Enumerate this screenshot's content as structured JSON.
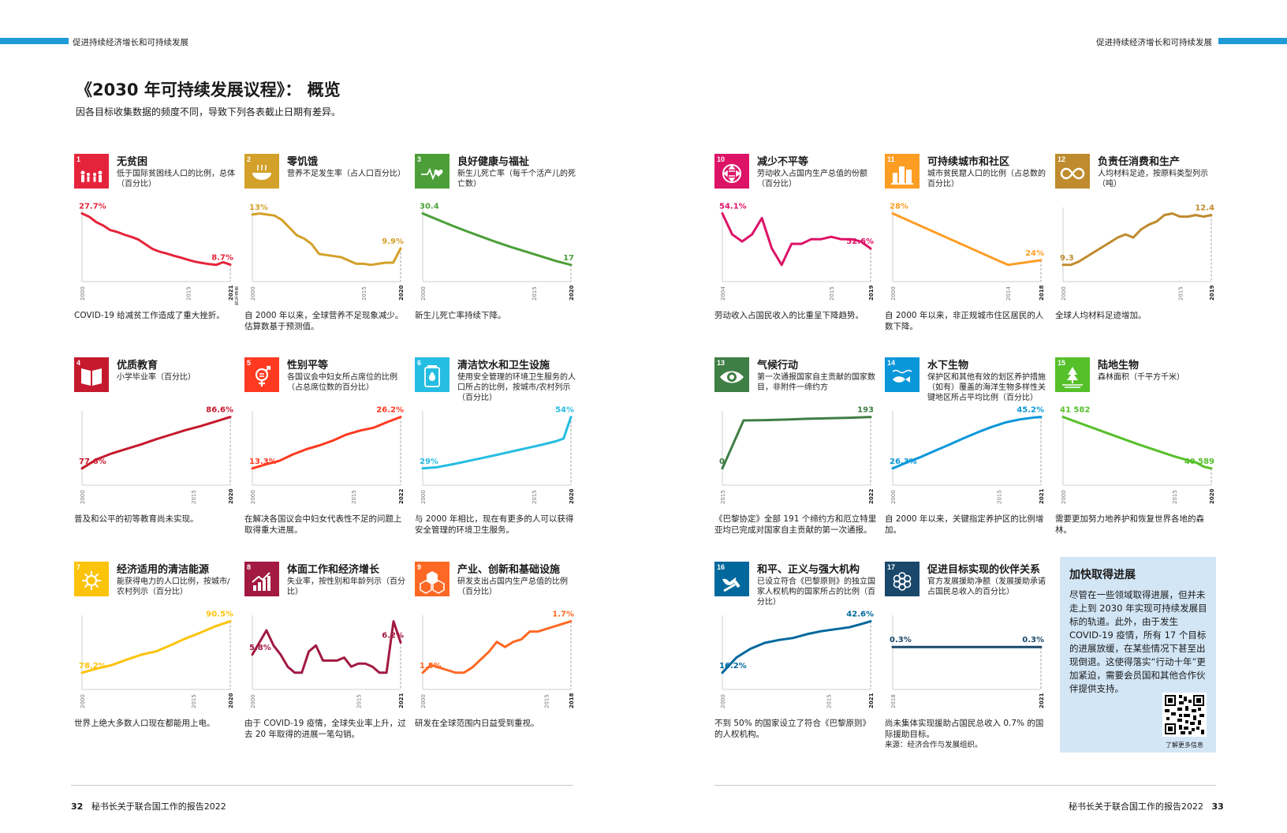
{
  "header": {
    "left": "促进持续经济增长和可持续发展",
    "right": "促进持续经济增长和可持续发展"
  },
  "title": "《2030 年可持续发展议程》： 概览",
  "subtitle": "因各目标收集数据的频度不同，导致下列各表截止日期有差异。",
  "panels": [
    {
      "num": "1",
      "icon": "people-family-icon",
      "color": "#e5243b",
      "title": "无贫困",
      "desc": "低于国际贫困线人口的比例，总体（百分比）",
      "caption": "COVID-19 给减贫工作造成了重大挫折。",
      "chart_data": {
        "type": "line",
        "x": [
          2000,
          2001,
          2002,
          2003,
          2004,
          2005,
          2006,
          2007,
          2008,
          2009,
          2010,
          2011,
          2012,
          2013,
          2014,
          2015,
          2016,
          2017,
          2018,
          2019,
          2020,
          2021
        ],
        "values": [
          27.7,
          26.5,
          24.5,
          23.2,
          21.5,
          20.8,
          19.8,
          19.0,
          18.0,
          16.2,
          14.5,
          13.5,
          12.8,
          12.0,
          11.3,
          10.5,
          9.8,
          9.3,
          8.9,
          8.6,
          9.6,
          8.7
        ],
        "start_label": "27.7%",
        "end_label": "8.7%",
        "ticks": [
          "2000",
          "2015"
        ],
        "end_tick": "2021",
        "end_tick_sub": "临近预测"
      }
    },
    {
      "num": "2",
      "icon": "food-bowl-icon",
      "color": "#d3a029",
      "title": "零饥饿",
      "desc": "营养不足发生率（占人口百分比）",
      "caption": "自 2000 年以来，全球营养不足现象减少。估算数基于预测值。",
      "chart_data": {
        "type": "line",
        "x": [
          2000,
          2001,
          2002,
          2003,
          2004,
          2005,
          2006,
          2007,
          2008,
          2009,
          2010,
          2011,
          2012,
          2013,
          2014,
          2015,
          2016,
          2017,
          2018,
          2019,
          2020
        ],
        "values": [
          13,
          13.1,
          13,
          12.9,
          12.5,
          11.8,
          11.1,
          10.8,
          10.3,
          9.4,
          9.3,
          9.2,
          9.1,
          8.8,
          8.5,
          8.5,
          8.4,
          8.5,
          8.6,
          8.6,
          9.9
        ],
        "start_label": "13%",
        "end_label": "9.9%",
        "ticks": [
          "2000",
          "2015"
        ],
        "end_tick": "2020",
        "end_tick_sub": ""
      }
    },
    {
      "num": "3",
      "icon": "heartbeat-icon",
      "color": "#4c9f38",
      "title": "良好健康与福祉",
      "desc": "新生儿死亡率（每千个活产儿的死亡数）",
      "caption": "新生儿死亡率持续下降。",
      "chart_data": {
        "type": "line",
        "x": [
          2000,
          2002,
          2004,
          2006,
          2008,
          2010,
          2012,
          2014,
          2016,
          2018,
          2020
        ],
        "values": [
          30.4,
          28.8,
          27.2,
          25.7,
          24.3,
          22.9,
          21.6,
          20.4,
          19.2,
          18.0,
          17
        ],
        "start_label": "30.4",
        "end_label": "17",
        "ticks": [
          "2000",
          "2015"
        ],
        "end_tick": "2020",
        "end_tick_sub": ""
      }
    },
    {
      "num": "4",
      "icon": "open-book-icon",
      "color": "#c5192d",
      "title": "优质教育",
      "desc": "小学毕业率（百分比）",
      "caption": "普及和公平的初等教育尚未实现。",
      "chart_data": {
        "type": "line",
        "x": [
          2000,
          2002,
          2004,
          2006,
          2008,
          2010,
          2012,
          2014,
          2016,
          2018,
          2020
        ],
        "values": [
          77.6,
          79.2,
          80.2,
          81.0,
          81.8,
          82.7,
          83.5,
          84.3,
          85.0,
          85.8,
          86.6
        ],
        "start_label": "77.6%",
        "end_label": "86.6%",
        "ticks": [
          "2000",
          "2015"
        ],
        "end_tick": "2020",
        "end_tick_sub": ""
      }
    },
    {
      "num": "5",
      "icon": "gender-equality-icon",
      "color": "#ff3a21",
      "title": "性别平等",
      "desc": "各国议会中妇女所占席位的比例（占总席位数的百分比）",
      "caption": "在解决各国议会中妇女代表性不足的问题上取得重大进展。",
      "chart_data": {
        "type": "line",
        "x": [
          2000,
          2002,
          2004,
          2006,
          2008,
          2010,
          2012,
          2014,
          2016,
          2018,
          2020,
          2022
        ],
        "values": [
          13.3,
          14.3,
          15.2,
          16.8,
          18.1,
          19.1,
          20.3,
          21.8,
          22.8,
          23.5,
          24.9,
          26.2
        ],
        "start_label": "13.3%",
        "end_label": "26.2%",
        "ticks": [
          "2000",
          "2015"
        ],
        "end_tick": "2022",
        "end_tick_sub": ""
      }
    },
    {
      "num": "6",
      "icon": "water-drop-icon",
      "color": "#26bde2",
      "title": "清洁饮水和卫生设施",
      "desc": "使用安全管理的环境卫生服务的人口所占的比例，按城市/农村列示（百分比）",
      "caption": "与 2000 年相比，现在有更多的人可以获得安全管理的环境卫生服务。",
      "chart_data": {
        "type": "line",
        "x": [
          2000,
          2002,
          2004,
          2006,
          2008,
          2010,
          2012,
          2014,
          2016,
          2018,
          2019,
          2020
        ],
        "values": [
          29,
          29.6,
          31,
          32.5,
          34,
          35.6,
          37.2,
          38.8,
          40.4,
          42.2,
          43.5,
          54
        ],
        "start_label": "29%",
        "end_label": "54%",
        "ticks": [
          "2000",
          "2015"
        ],
        "end_tick": "2020",
        "end_tick_sub": ""
      }
    },
    {
      "num": "7",
      "icon": "sun-icon",
      "color": "#fcc30b",
      "title": "经济适用的清洁能源",
      "desc": "能获得电力的人口比例，按城市/农村列示（百分比）",
      "caption": "世界上绝大多数人口现在都能用上电。",
      "chart_data": {
        "type": "line",
        "x": [
          2000,
          2002,
          2004,
          2006,
          2008,
          2010,
          2012,
          2014,
          2016,
          2018,
          2020
        ],
        "values": [
          78.2,
          79.2,
          80.0,
          81.3,
          82.5,
          83.3,
          84.8,
          86.4,
          87.8,
          89.3,
          90.5
        ],
        "start_label": "78.2%",
        "end_label": "90.5%",
        "ticks": [
          "2000",
          "2015"
        ],
        "end_tick": "2020",
        "end_tick_sub": ""
      }
    },
    {
      "num": "8",
      "icon": "growth-chart-icon",
      "color": "#a21942",
      "title": "体面工作和经济增长",
      "desc": "失业率，按性别和年龄列示（百分比）",
      "caption": "由于 COVID-19 疫情，全球失业率上升，过去 20 年取得的进展一笔勾销。",
      "chart_data": {
        "type": "line",
        "x": [
          2000,
          2001,
          2002,
          2003,
          2004,
          2005,
          2006,
          2007,
          2008,
          2009,
          2010,
          2011,
          2012,
          2013,
          2014,
          2015,
          2016,
          2017,
          2018,
          2019,
          2020,
          2021
        ],
        "values": [
          5.8,
          6.2,
          6.6,
          6.1,
          5.8,
          5.4,
          5.2,
          5.2,
          5.9,
          6.1,
          5.6,
          5.6,
          5.6,
          5.7,
          5.4,
          5.5,
          5.5,
          5.4,
          5.2,
          5.2,
          6.9,
          6.2
        ],
        "start_label": "5.8%",
        "end_label": "6.2%",
        "ticks": [
          "2000",
          "2015"
        ],
        "end_tick": "2021",
        "end_tick_sub": ""
      }
    },
    {
      "num": "9",
      "icon": "cube-blocks-icon",
      "color": "#fd6925",
      "title": "产业、创新和基础设施",
      "desc": "研发支出占国内生产总值的比例（百分比）",
      "caption": "研发在全球范围内日益受到重视。",
      "chart_data": {
        "type": "line",
        "x": [
          2000,
          2001,
          2002,
          2003,
          2004,
          2005,
          2006,
          2007,
          2008,
          2009,
          2010,
          2011,
          2012,
          2013,
          2014,
          2015,
          2016,
          2017,
          2018
        ],
        "values": [
          1.5,
          1.53,
          1.52,
          1.51,
          1.5,
          1.5,
          1.52,
          1.55,
          1.58,
          1.62,
          1.6,
          1.62,
          1.63,
          1.66,
          1.66,
          1.67,
          1.68,
          1.69,
          1.7
        ],
        "start_label": "1.5%",
        "end_label": "1.7%",
        "ticks": [
          "2000",
          "2015"
        ],
        "end_tick": "2018",
        "end_tick_sub": ""
      }
    },
    {
      "num": "10",
      "icon": "reduced-inequality-icon",
      "color": "#dd1367",
      "title": "减少不平等",
      "desc": "劳动收入占国内生产总值的份额（百分比）",
      "caption": "劳动收入占国民收入的比重呈下降趋势。",
      "chart_data": {
        "type": "line",
        "x": [
          2004,
          2005,
          2006,
          2007,
          2008,
          2009,
          2010,
          2011,
          2012,
          2013,
          2014,
          2015,
          2016,
          2017,
          2018,
          2019
        ],
        "values": [
          54.1,
          53.2,
          52.9,
          53.2,
          53.9,
          52.6,
          51.9,
          52.8,
          52.8,
          53.0,
          53.0,
          53.1,
          53.0,
          53.0,
          52.9,
          52.6
        ],
        "start_label": "54.1%",
        "end_label": "52.6%",
        "ticks": [
          "2004",
          "2015"
        ],
        "end_tick": "2019",
        "end_tick_sub": ""
      }
    },
    {
      "num": "11",
      "icon": "city-buildings-icon",
      "color": "#fd9d24",
      "title": "可持续城市和社区",
      "desc": "城市贫民窟人口的比例（占总数的百分比）",
      "caption": "自 2000 年以来，非正规城市住区居民的人数下降。",
      "chart_data": {
        "type": "line",
        "x": [
          2000,
          2014,
          2018
        ],
        "values": [
          28,
          23.6,
          24
        ],
        "start_label": "28%",
        "end_label": "24%",
        "ticks": [
          "2000",
          "2014"
        ],
        "end_tick": "2018",
        "end_tick_sub": ""
      }
    },
    {
      "num": "12",
      "icon": "infinity-icon",
      "color": "#bf8b2e",
      "title": "负责任消费和生产",
      "desc": "人均材料足迹，按原料类型列示（吨）",
      "caption": "全球人均材料足迹增加。",
      "chart_data": {
        "type": "line",
        "x": [
          2000,
          2001,
          2002,
          2003,
          2004,
          2005,
          2006,
          2007,
          2008,
          2009,
          2010,
          2011,
          2012,
          2013,
          2014,
          2015,
          2016,
          2017,
          2018,
          2019
        ],
        "values": [
          9.3,
          9.3,
          9.5,
          9.8,
          10.1,
          10.4,
          10.7,
          11.0,
          11.2,
          11.0,
          11.5,
          11.8,
          12.0,
          12.4,
          12.5,
          12.3,
          12.3,
          12.4,
          12.3,
          12.4
        ],
        "start_label": "9.3",
        "end_label": "12.4",
        "ticks": [
          "2000",
          "2015"
        ],
        "end_tick": "2019",
        "end_tick_sub": ""
      }
    },
    {
      "num": "13",
      "icon": "eye-globe-icon",
      "color": "#3f7e44",
      "title": "气候行动",
      "desc": "第一次通报国家自主贡献的国家数目，非附件一缔约方",
      "caption": "《巴黎协定》全部 191 个缔约方和厄立特里亚均已完成对国家自主贡献的第一次通报。",
      "chart_data": {
        "type": "line",
        "x": [
          2015,
          2016,
          2017,
          2018,
          2019,
          2020,
          2021,
          2022
        ],
        "values": [
          0,
          180,
          181,
          183,
          186,
          188,
          190,
          193
        ],
        "start_label": "0",
        "end_label": "193",
        "ticks": [
          "2015"
        ],
        "end_tick": "2022",
        "end_tick_sub": ""
      }
    },
    {
      "num": "14",
      "icon": "fish-water-icon",
      "color": "#0a97d9",
      "title": "水下生物",
      "desc": "保护区和其他有效的划区养护措施（如有）覆盖的海洋生物多样性关键地区所占平均比例（百分比）",
      "caption": "自 2000 年以来，关键指定养护区的比例增加。",
      "chart_data": {
        "type": "line",
        "x": [
          2000,
          2002,
          2004,
          2006,
          2008,
          2010,
          2012,
          2014,
          2016,
          2018,
          2020,
          2021
        ],
        "values": [
          26.3,
          28.5,
          30.5,
          32.8,
          35.0,
          37.3,
          39.5,
          41.5,
          43.2,
          44.3,
          45.0,
          45.2
        ],
        "start_label": "26.3%",
        "end_label": "45.2%",
        "ticks": [
          "2000",
          "2015"
        ],
        "end_tick": "2021",
        "end_tick_sub": ""
      }
    },
    {
      "num": "15",
      "icon": "tree-land-icon",
      "color": "#56c02b",
      "title": "陆地生物",
      "desc": "森林面积（千平方千米）",
      "caption": "需要更加努力地养护和恢复世界各地的森林。",
      "chart_data": {
        "type": "line",
        "x": [
          2000,
          2005,
          2010,
          2015,
          2018,
          2019,
          2020
        ],
        "values": [
          41582,
          41320,
          41060,
          40820,
          40700,
          40620,
          40589
        ],
        "start_label": "41 582",
        "end_label": "40 589",
        "ticks": [
          "2000",
          "2015"
        ],
        "end_tick": "2020",
        "end_tick_sub": ""
      }
    },
    {
      "num": "16",
      "icon": "dove-gavel-icon",
      "color": "#00689d",
      "title": "和平、正义与强大机构",
      "desc": "已设立符合《巴黎原则》的独立国家人权机构的国家所占的比例（百分比）",
      "caption": "不到 50% 的国家设立了符合《巴黎原则》的人权机构。",
      "chart_data": {
        "type": "line",
        "x": [
          2000,
          2002,
          2004,
          2006,
          2008,
          2010,
          2012,
          2014,
          2016,
          2018,
          2020,
          2021
        ],
        "values": [
          16.2,
          24.0,
          28.5,
          31.5,
          33.0,
          34.0,
          36.0,
          37.5,
          38.5,
          39.5,
          41.5,
          42.6
        ],
        "start_label": "16.2%",
        "end_label": "42.6%",
        "ticks": [
          "2000",
          "2015"
        ],
        "end_tick": "2021",
        "end_tick_sub": ""
      }
    },
    {
      "num": "17",
      "icon": "partnership-flower-icon",
      "color": "#19486a",
      "title": "促进目标实现的伙伴关系",
      "desc": "官方发展援助净额（发展援助承诺占国民总收入的百分比）",
      "caption": "尚未集体实现援助占国民总收入 0.7% 的国际援助目标。",
      "caption2": "来源：经济合作与发展组织。",
      "chart_data": {
        "type": "line",
        "x": [
          2018,
          2019,
          2020,
          2021
        ],
        "values": [
          0.3,
          0.3,
          0.3,
          0.3
        ],
        "start_label": "0.3%",
        "end_label": "0.3%",
        "ticks": [
          "2018"
        ],
        "end_tick": "2021",
        "end_tick_sub": ""
      }
    }
  ],
  "infobox": {
    "title": "加快取得进展",
    "text": "尽管在一些领域取得进展，但并未走上到 2030 年实现可持续发展目标的轨道。此外，由于发生 COVID-19 疫情，所有 17 个目标的进展放缓，在某些情况下甚至出现倒退。这使得落实“行动十年”更加紧迫，需要会员国和其他合作伙伴提供支持。",
    "qr_label": "了解更多信息"
  },
  "footer": {
    "left_page": "32",
    "left_title": "秘书长关于联合国工作的报告2022",
    "right_title": "秘书长关于联合国工作的报告2022",
    "right_page": "33"
  }
}
